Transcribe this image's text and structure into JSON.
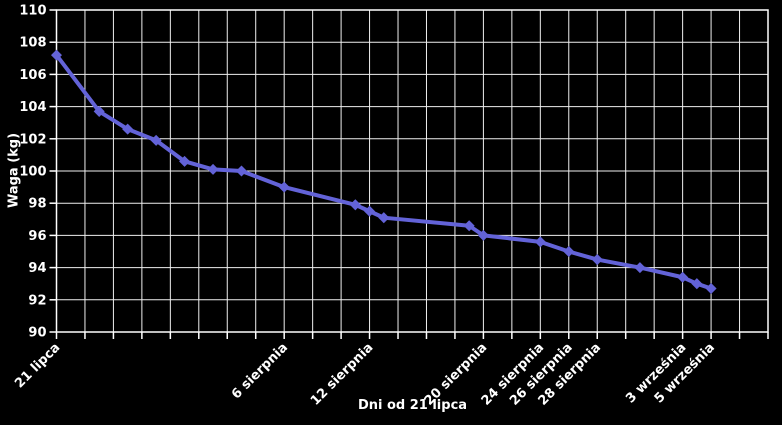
{
  "chart_data": {
    "type": "line",
    "xlabel": "Dni od 21 lipca",
    "ylabel": "Waga (kg)",
    "x_range": [
      0,
      50
    ],
    "y_range": [
      90,
      110
    ],
    "x_gridline_step_days": 2,
    "y_ticks": [
      90,
      92,
      94,
      96,
      98,
      100,
      102,
      104,
      106,
      108,
      110
    ],
    "x_tick_labels": [
      {
        "day": 0,
        "label": "21 lipca"
      },
      {
        "day": 16,
        "label": "6 sierpnia"
      },
      {
        "day": 22,
        "label": "12 sierpnia"
      },
      {
        "day": 30,
        "label": "20 sierpnia"
      },
      {
        "day": 34,
        "label": "24 sierpnia"
      },
      {
        "day": 36,
        "label": "26 sierpnia"
      },
      {
        "day": 38,
        "label": "28 sierpnia"
      },
      {
        "day": 44,
        "label": "3 września"
      },
      {
        "day": 46,
        "label": "5 września"
      }
    ],
    "series": [
      {
        "name": "Waga",
        "points": [
          [
            0,
            107.2
          ],
          [
            3,
            103.7
          ],
          [
            5,
            102.6
          ],
          [
            7,
            101.9
          ],
          [
            9,
            100.6
          ],
          [
            11,
            100.1
          ],
          [
            13,
            100.0
          ],
          [
            16,
            99.0
          ],
          [
            21,
            97.9
          ],
          [
            22,
            97.5
          ],
          [
            23,
            97.1
          ],
          [
            29,
            96.6
          ],
          [
            30,
            96.0
          ],
          [
            34,
            95.6
          ],
          [
            36,
            95.0
          ],
          [
            38,
            94.5
          ],
          [
            41,
            94.0
          ],
          [
            44,
            93.4
          ],
          [
            45,
            93.0
          ],
          [
            46,
            92.7
          ]
        ]
      }
    ],
    "legend": "none",
    "grid": true,
    "markers": true,
    "colors": {
      "background": "#000000",
      "grid": "#f0f0f0",
      "border": "#ffffff",
      "line": "#6363d8",
      "text": "#ffffff"
    }
  }
}
